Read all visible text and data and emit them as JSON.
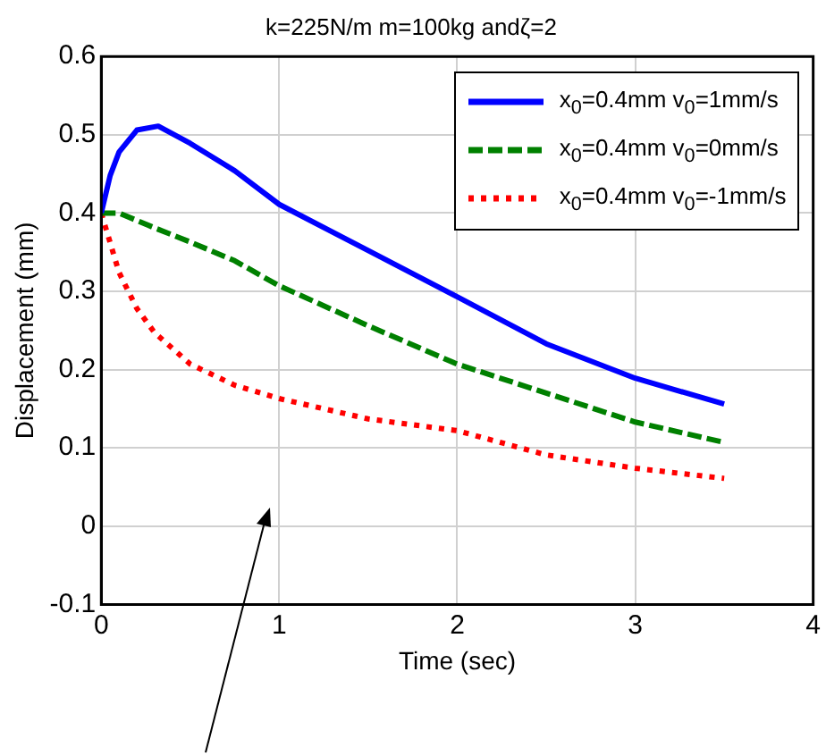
{
  "chart_data": {
    "type": "line",
    "title": "k=225N/m m=100kg andζ=2",
    "xlabel": "Time (sec)",
    "ylabel": "Displacement (mm)",
    "xlim": [
      0,
      4
    ],
    "xticks": [
      0,
      1,
      2,
      3,
      4
    ],
    "ylim": [
      -0.1,
      0.6
    ],
    "yticks": [
      -0.1,
      0,
      0.1,
      0.2,
      0.3,
      0.4,
      0.5,
      0.6
    ],
    "grid": true,
    "legend": "top right",
    "marker": "none",
    "series": [
      {
        "name": "x$_{0}$=0.4mm v$_{0}$=1mm/s",
        "color": "#0000ff",
        "line_style": "solid",
        "x": [
          0,
          0.05,
          0.1,
          0.2,
          0.32,
          0.5,
          0.75,
          1,
          1.5,
          2,
          2.5,
          3,
          3.5
        ],
        "values": [
          0.4,
          0.448,
          0.478,
          0.506,
          0.511,
          0.489,
          0.454,
          0.411,
          0.352,
          0.293,
          0.233,
          0.189,
          0.156
        ]
      },
      {
        "name": "x$_{0}$=0.4mm v$_{0}$=0mm/s",
        "color": "#008000",
        "line_style": "dashed",
        "x": [
          0,
          0.1,
          0.3,
          0.5,
          0.75,
          1,
          1.5,
          2,
          2.5,
          3,
          3.5
        ],
        "values": [
          0.4,
          0.4,
          0.381,
          0.363,
          0.339,
          0.307,
          0.256,
          0.207,
          0.17,
          0.133,
          0.107
        ]
      },
      {
        "name": "x$_{0}$=0.4mm v$_{0}$=-1mm/s",
        "color": "#ff0000",
        "line_style": "dotted",
        "x": [
          0,
          0.05,
          0.1,
          0.2,
          0.3,
          0.5,
          0.75,
          1,
          1.5,
          2,
          2.5,
          3,
          3.5
        ],
        "values": [
          0.4,
          0.362,
          0.324,
          0.278,
          0.247,
          0.207,
          0.18,
          0.163,
          0.137,
          0.122,
          0.091,
          0.074,
          0.061
        ]
      }
    ]
  }
}
